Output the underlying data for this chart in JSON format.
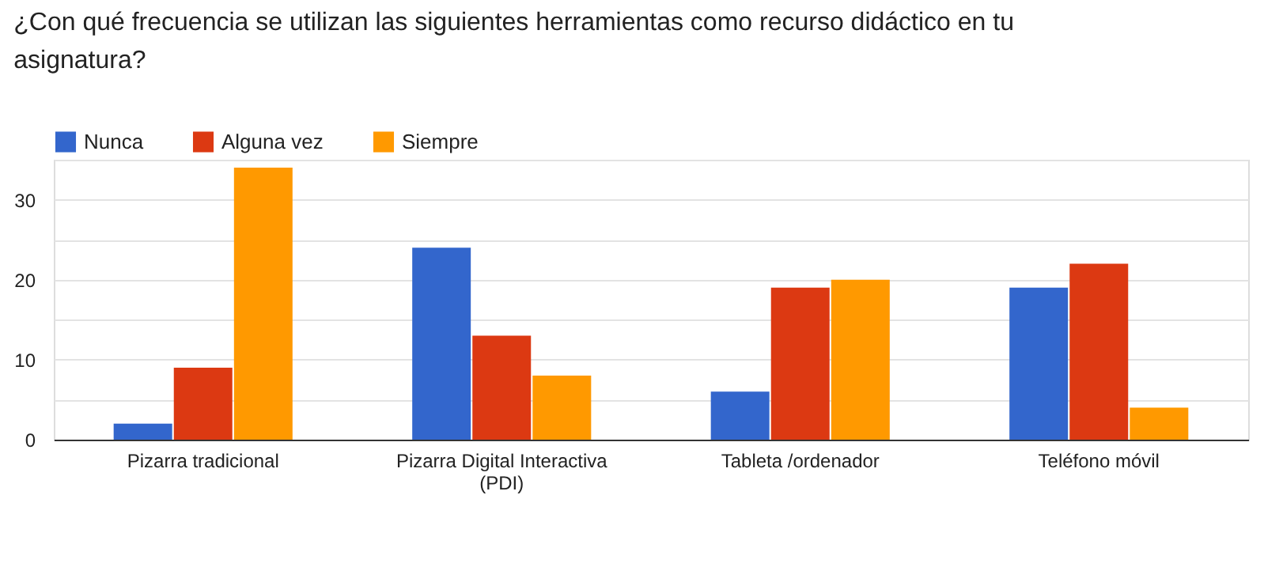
{
  "chart_data": {
    "type": "bar",
    "title": "¿Con qué frecuencia se utilizan las siguientes herramientas como recurso didáctico en tu asignatura?",
    "categories": [
      "Pizarra tradicional",
      "Pizarra Digital Interactiva (PDI)",
      "Tableta /ordenador",
      "Teléfono móvil"
    ],
    "series": [
      {
        "name": "Nunca",
        "color": "#3366cc",
        "values": [
          2,
          24,
          6,
          19
        ]
      },
      {
        "name": "Alguna vez",
        "color": "#dc3912",
        "values": [
          9,
          13,
          19,
          22
        ]
      },
      {
        "name": "Siempre",
        "color": "#ff9900",
        "values": [
          34,
          8,
          20,
          4
        ]
      }
    ],
    "ylim": [
      0,
      35
    ],
    "yticks": [
      0,
      {
        "value": 5,
        "label": null
      },
      10,
      {
        "value": 15,
        "label": null
      },
      20,
      {
        "value": 25,
        "label": null
      },
      30,
      {
        "value": 35,
        "label": null
      }
    ],
    "grid": "y",
    "legend": "top left"
  }
}
